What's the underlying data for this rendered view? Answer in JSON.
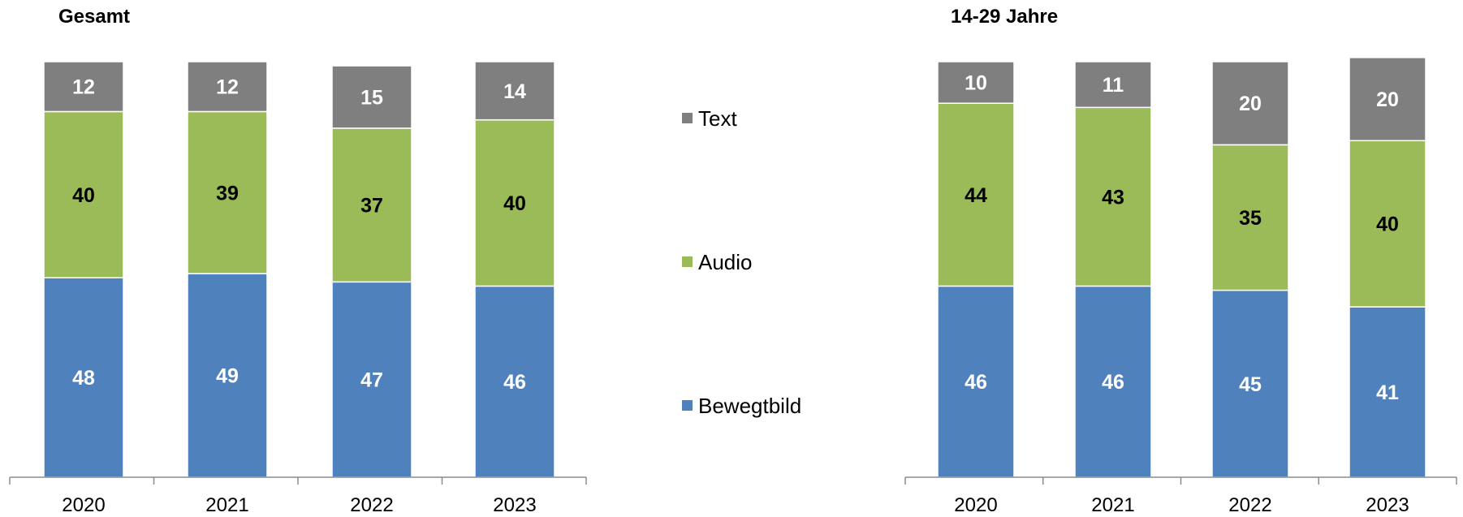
{
  "legend": [
    {
      "name": "Text",
      "color": "#7f7f7f"
    },
    {
      "name": "Audio",
      "color": "#9bbb59"
    },
    {
      "name": "Bewegtbild",
      "color": "#4f81bd"
    }
  ],
  "chart_data": [
    {
      "type": "bar",
      "stacked": true,
      "title": "Gesamt",
      "categories": [
        "2020",
        "2021",
        "2022",
        "2023"
      ],
      "series": [
        {
          "name": "Bewegtbild",
          "values": [
            48,
            49,
            47,
            46
          ],
          "color": "#4f81bd",
          "label_color": "#ffffff"
        },
        {
          "name": "Audio",
          "values": [
            40,
            39,
            37,
            40
          ],
          "color": "#9bbb59",
          "label_color": "#000000"
        },
        {
          "name": "Text",
          "values": [
            12,
            12,
            15,
            14
          ],
          "color": "#7f7f7f",
          "label_color": "#ffffff"
        }
      ],
      "ylim": [
        0,
        100
      ],
      "grid": false,
      "legend": "right"
    },
    {
      "type": "bar",
      "stacked": true,
      "title": "14-29 Jahre",
      "categories": [
        "2020",
        "2021",
        "2022",
        "2023"
      ],
      "series": [
        {
          "name": "Bewegtbild",
          "values": [
            46,
            46,
            45,
            41
          ],
          "color": "#4f81bd",
          "label_color": "#ffffff"
        },
        {
          "name": "Audio",
          "values": [
            44,
            43,
            35,
            40
          ],
          "color": "#9bbb59",
          "label_color": "#000000"
        },
        {
          "name": "Text",
          "values": [
            10,
            11,
            20,
            20
          ],
          "color": "#7f7f7f",
          "label_color": "#ffffff"
        }
      ],
      "ylim": [
        0,
        100
      ],
      "grid": false,
      "legend": "left"
    }
  ]
}
